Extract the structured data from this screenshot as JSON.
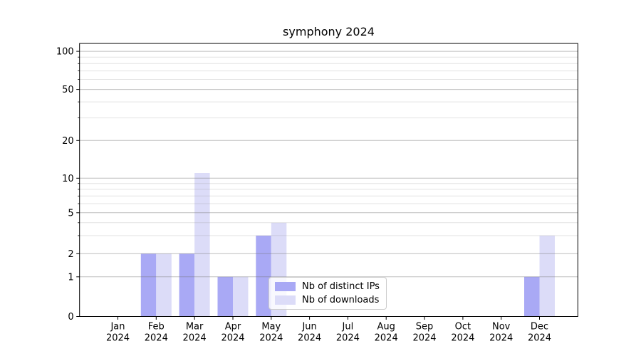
{
  "chart_data": {
    "type": "bar",
    "title": "symphony 2024",
    "categories": [
      "Jan",
      "Feb",
      "Mar",
      "Apr",
      "May",
      "Jun",
      "Jul",
      "Aug",
      "Sep",
      "Oct",
      "Nov",
      "Dec"
    ],
    "category_year": "2024",
    "series": [
      {
        "name": "Nb of distinct IPs",
        "color": "#a9a9f5",
        "values": [
          0,
          2,
          2,
          1,
          3,
          0,
          0,
          0,
          0,
          0,
          0,
          1
        ]
      },
      {
        "name": "Nb of downloads",
        "color": "#dcdcf8",
        "values": [
          0,
          2,
          11,
          1,
          4,
          0,
          0,
          0,
          0,
          0,
          0,
          3
        ]
      }
    ],
    "yscale": "symlog",
    "ytick_values": [
      0,
      1,
      2,
      5,
      10,
      20,
      50,
      100
    ],
    "ytick_labels": [
      "0",
      "1",
      "2",
      "5",
      "10",
      "20",
      "50",
      "100"
    ],
    "yminor_values": [
      3,
      4,
      6,
      7,
      8,
      9,
      30,
      40,
      60,
      70,
      80,
      90
    ],
    "ylim": [
      0,
      115
    ],
    "grid": true,
    "legend_position": "lower center-left",
    "colors": {
      "axis": "#000000",
      "grid_major": "rgba(110,110,110,0.45)",
      "grid_minor": "rgba(150,150,150,0.27)",
      "tick_text": "#000000"
    }
  }
}
